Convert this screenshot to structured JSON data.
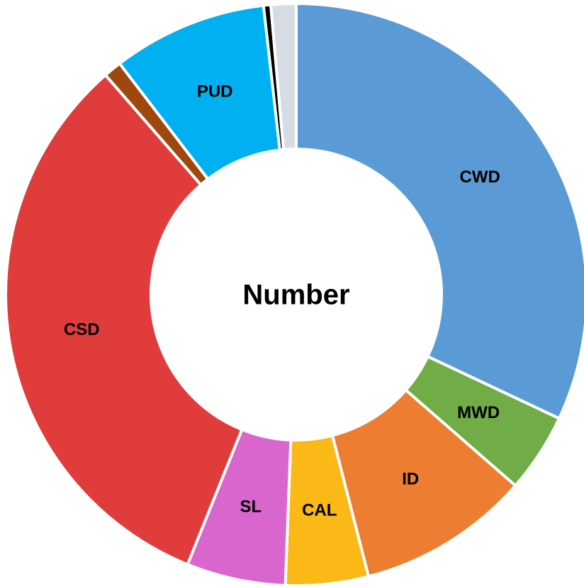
{
  "chart_data": {
    "type": "donut",
    "title": "Number",
    "categories": [
      "CWD",
      "MWD",
      "ID",
      "CAL",
      "SL",
      "CSD",
      null,
      "PUD",
      null,
      null
    ],
    "values": [
      32,
      4.4,
      9.6,
      4.6,
      5.5,
      32.5,
      1,
      8.6,
      0.4,
      1.4
    ],
    "colors": [
      "#5b9bd5",
      "#70ad47",
      "#ed7d31",
      "#fbb918",
      "#d966cc",
      "#e03c3c",
      "#9e480e",
      "#00b0f0",
      "#000000",
      "#d6dce4"
    ]
  }
}
